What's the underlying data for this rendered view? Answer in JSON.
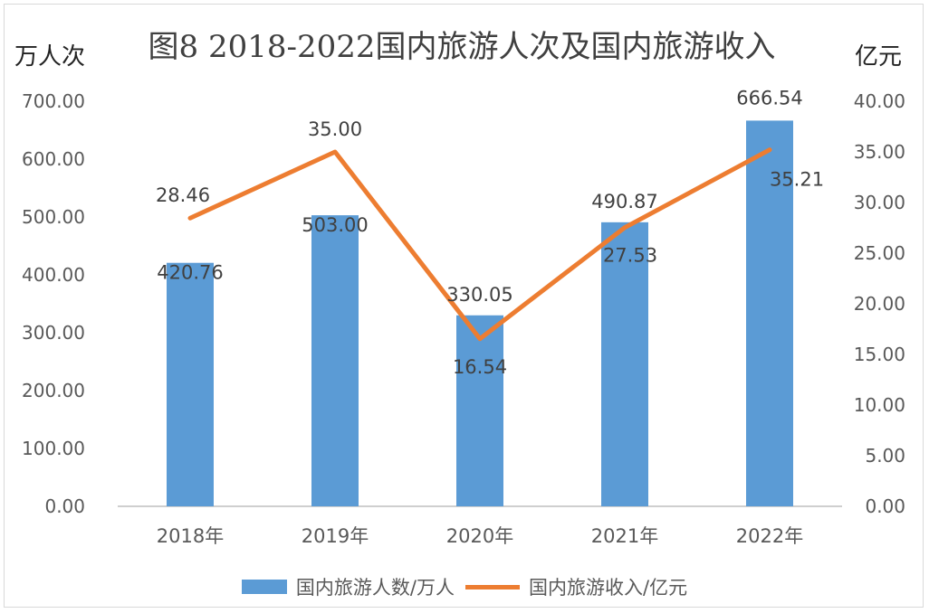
{
  "title": "图8   2018-2022国内旅游人次及国内旅游收入",
  "left_unit": "万人次",
  "right_unit": "亿元",
  "colors": {
    "bars": "#5b9bd5",
    "line": "#ed7d31",
    "grid": "#d9d9d9",
    "axis": "#bfbfbf"
  },
  "chart_data": {
    "type": "bar",
    "categories": [
      "2018年",
      "2019年",
      "2020年",
      "2021年",
      "2022年"
    ],
    "series": [
      {
        "name": "国内旅游人数/万人",
        "type": "bar",
        "axis": "left",
        "values": [
          420.76,
          503.0,
          330.05,
          490.87,
          666.54
        ],
        "labels": [
          "420.76",
          "503.00",
          "330.05",
          "490.87",
          "666.54"
        ]
      },
      {
        "name": "国内旅游收入/亿元",
        "type": "line",
        "axis": "right",
        "values": [
          28.46,
          35.0,
          16.54,
          27.53,
          35.21
        ],
        "labels": [
          "28.46",
          "35.00",
          "16.54",
          "27.53",
          "35.21"
        ]
      }
    ],
    "y_left": {
      "min": 0,
      "max": 700,
      "step": 100,
      "ticks": [
        "0.00",
        "100.00",
        "200.00",
        "300.00",
        "400.00",
        "500.00",
        "600.00",
        "700.00"
      ]
    },
    "y_right": {
      "min": 0,
      "max": 40,
      "step": 5,
      "ticks": [
        "0.00",
        "5.00",
        "10.00",
        "15.00",
        "20.00",
        "25.00",
        "30.00",
        "35.00",
        "40.00"
      ]
    },
    "grid": false,
    "legend_position": "bottom"
  }
}
